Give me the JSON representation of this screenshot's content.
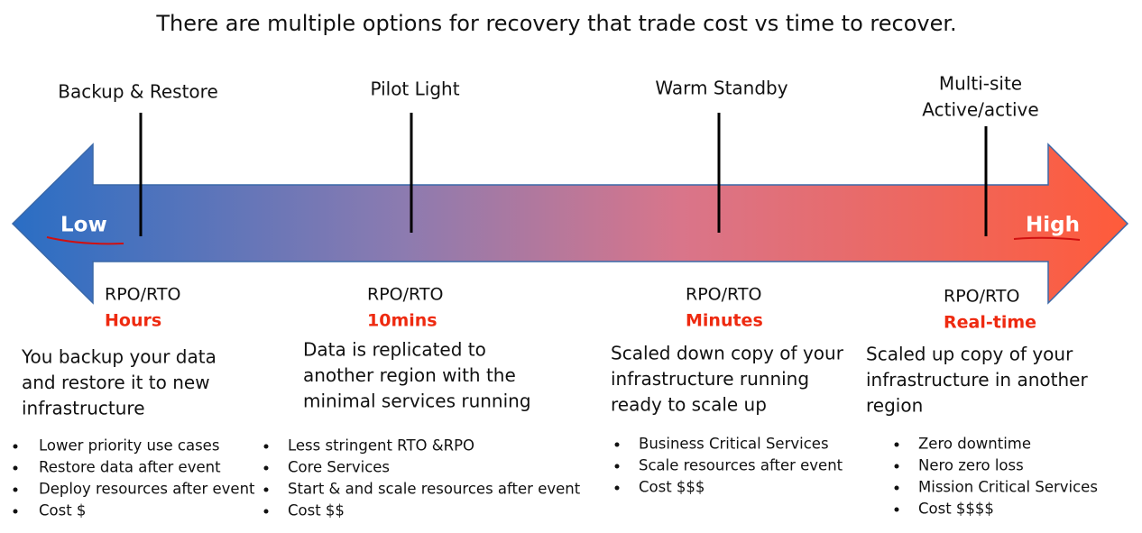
{
  "title": "There are multiple options for recovery that trade cost vs time to recover.",
  "scale": {
    "low": "Low",
    "high": "High"
  },
  "options": [
    {
      "name": [
        "Backup & Restore"
      ],
      "metric": "RPO/RTO",
      "time": "Hours",
      "description": [
        "You backup your data",
        "and restore it to new",
        "infrastructure"
      ],
      "bullets": [
        "Lower priority use cases",
        "Restore data after event",
        "Deploy resources after event",
        "Cost $"
      ]
    },
    {
      "name": [
        "Pilot Light"
      ],
      "metric": "RPO/RTO",
      "time": "10mins",
      "description": [
        "Data is replicated to",
        "another region with the",
        "minimal services running"
      ],
      "bullets": [
        "Less stringent RTO &RPO",
        "Core Services",
        "Start & and scale resources after event",
        "Cost $$"
      ]
    },
    {
      "name": [
        "Warm Standby"
      ],
      "metric": "RPO/RTO",
      "time": "Minutes",
      "description": [
        "Scaled down copy of your",
        "infrastructure running",
        "ready to scale up"
      ],
      "bullets": [
        "Business Critical Services",
        "Scale resources after event",
        "Cost $$$"
      ]
    },
    {
      "name": [
        "Multi-site",
        "Active/active"
      ],
      "metric": "RPO/RTO",
      "time": "Real-time",
      "description": [
        "Scaled up copy of your",
        "infrastructure in another",
        "region"
      ],
      "bullets": [
        "Zero downtime",
        "Nero zero loss",
        "Mission Critical Services",
        "Cost $$$$"
      ]
    }
  ]
}
